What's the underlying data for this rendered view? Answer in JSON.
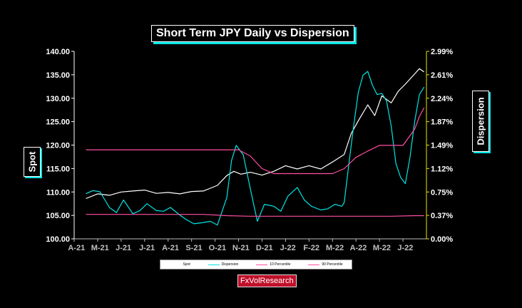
{
  "title": "Short Term JPY Daily vs Dispersion",
  "watermark": "FxVolResearch",
  "colors": {
    "background": "#000000",
    "spot": "#ffffff",
    "dispersion": "#00e5e5",
    "pct10": "#ff4fa3",
    "pct90": "#ff4fa3",
    "left_axis": "#ffffff",
    "right_axis": "#e6e600",
    "x_ticks": "#c0c0c0"
  },
  "chart_data": {
    "type": "line",
    "title": "Short Term JPY Daily vs Dispersion",
    "ylabel": "Spot",
    "y2label": "Dispersion",
    "x_ticks": [
      "A-21",
      "M-21",
      "J-21",
      "J-21",
      "A-21",
      "S-21",
      "O-21",
      "N-21",
      "D-21",
      "J-22",
      "F-22",
      "M-22",
      "A-22",
      "M-22",
      "J-22"
    ],
    "y_ticks": [
      "140.00",
      "135.00",
      "130.00",
      "125.00",
      "120.00",
      "115.00",
      "110.00",
      "105.00",
      "100.00"
    ],
    "y2_ticks": [
      "2.99%",
      "2.61%",
      "2.24%",
      "1.87%",
      "1.49%",
      "1.12%",
      "0.75%",
      "0.37%",
      "0.00%"
    ],
    "ylim": [
      100,
      140
    ],
    "y2lim": [
      0,
      2.99
    ],
    "legend_position": "bottom",
    "series": [
      {
        "name": "Spot",
        "axis": "left",
        "x": [
          0,
          0.5,
          1,
          1.5,
          2,
          2.5,
          3,
          3.5,
          4,
          4.5,
          5,
          5.3,
          5.6,
          6,
          6.3,
          6.6,
          7,
          7.5,
          8,
          8.5,
          9,
          9.5,
          10,
          10.5,
          11,
          11.3,
          11.6,
          12,
          12.3,
          12.6,
          13,
          13.3,
          13.6,
          14,
          14.2,
          14.4
        ],
        "values": [
          108.6,
          109.6,
          109.3,
          110.0,
          110.2,
          110.4,
          109.7,
          109.9,
          109.6,
          110.1,
          110.2,
          110.8,
          111.4,
          113.5,
          114.4,
          113.8,
          114.2,
          113.6,
          114.4,
          115.6,
          114.9,
          115.6,
          114.9,
          116.4,
          118.0,
          122.5,
          125.2,
          128.6,
          126.3,
          130.5,
          129.0,
          131.5,
          133.0,
          135.2,
          136.3,
          135.6
        ]
      },
      {
        "name": "Dispersion",
        "axis": "right",
        "x": [
          0,
          0.3,
          0.6,
          1,
          1.3,
          1.6,
          2,
          2.3,
          2.6,
          3,
          3.3,
          3.6,
          4,
          4.3,
          4.6,
          5,
          5.3,
          5.6,
          6,
          6.2,
          6.4,
          6.7,
          7,
          7.3,
          7.6,
          8,
          8.3,
          8.6,
          9,
          9.3,
          9.6,
          10,
          10.3,
          10.6,
          10.9,
          11,
          11.2,
          11.4,
          11.6,
          11.8,
          12,
          12.2,
          12.4,
          12.6,
          12.8,
          13,
          13.2,
          13.4,
          13.6,
          13.8,
          14,
          14.2,
          14.4
        ],
        "values": [
          0.72,
          0.77,
          0.75,
          0.5,
          0.42,
          0.62,
          0.4,
          0.45,
          0.56,
          0.45,
          0.44,
          0.5,
          0.38,
          0.3,
          0.24,
          0.26,
          0.28,
          0.22,
          0.66,
          1.25,
          1.49,
          1.34,
          0.8,
          0.28,
          0.55,
          0.52,
          0.44,
          0.68,
          0.82,
          0.62,
          0.52,
          0.46,
          0.48,
          0.55,
          0.52,
          0.58,
          1.2,
          1.8,
          2.34,
          2.61,
          2.67,
          2.45,
          2.3,
          2.32,
          2.2,
          1.8,
          1.2,
          0.98,
          0.88,
          1.3,
          1.87,
          2.3,
          2.42
        ]
      },
      {
        "name": "10 Percentile",
        "axis": "right",
        "x": [
          0,
          5,
          6,
          7,
          8,
          9,
          10,
          11,
          12,
          13,
          14,
          14.4
        ],
        "values": [
          0.39,
          0.39,
          0.37,
          0.36,
          0.36,
          0.36,
          0.36,
          0.36,
          0.36,
          0.36,
          0.37,
          0.37
        ]
      },
      {
        "name": "90 Percentile",
        "axis": "right",
        "x": [
          0,
          1,
          2,
          3,
          4,
          5,
          6,
          6.5,
          7,
          7.5,
          8,
          8.5,
          9,
          9.5,
          10,
          10.5,
          11,
          11.5,
          12,
          12.5,
          13,
          13.5,
          14,
          14.2,
          14.4
        ],
        "values": [
          1.42,
          1.42,
          1.42,
          1.42,
          1.42,
          1.42,
          1.42,
          1.42,
          1.32,
          1.12,
          1.04,
          1.04,
          1.04,
          1.04,
          1.04,
          1.04,
          1.12,
          1.3,
          1.4,
          1.49,
          1.49,
          1.49,
          1.75,
          1.95,
          2.09
        ]
      }
    ]
  }
}
